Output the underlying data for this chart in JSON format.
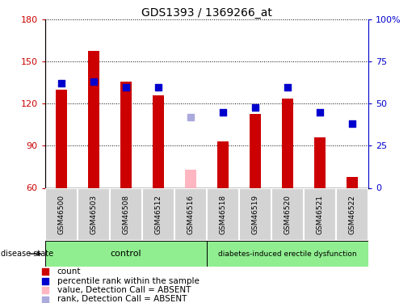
{
  "title": "GDS1393 / 1369266_at",
  "samples": [
    "GSM46500",
    "GSM46503",
    "GSM46508",
    "GSM46512",
    "GSM46516",
    "GSM46518",
    "GSM46519",
    "GSM46520",
    "GSM46521",
    "GSM46522"
  ],
  "count_values": [
    130,
    158,
    136,
    126,
    null,
    93,
    113,
    124,
    96,
    68
  ],
  "count_absent": [
    null,
    null,
    null,
    null,
    73,
    null,
    null,
    null,
    null,
    null
  ],
  "rank_values_pct": [
    62,
    63,
    60,
    60,
    null,
    45,
    48,
    60,
    45,
    38
  ],
  "rank_absent_pct": [
    null,
    null,
    null,
    null,
    42,
    null,
    null,
    null,
    null,
    null
  ],
  "ylim_left": [
    60,
    180
  ],
  "ylim_right": [
    0,
    100
  ],
  "yticks_left": [
    60,
    90,
    120,
    150,
    180
  ],
  "yticks_right": [
    0,
    25,
    50,
    75,
    100
  ],
  "yticklabels_right": [
    "0",
    "25",
    "50",
    "75",
    "100%"
  ],
  "control_samples": [
    "GSM46500",
    "GSM46503",
    "GSM46508",
    "GSM46512",
    "GSM46516"
  ],
  "disease_samples": [
    "GSM46518",
    "GSM46519",
    "GSM46520",
    "GSM46521",
    "GSM46522"
  ],
  "control_label": "control",
  "disease_label": "diabetes-induced erectile dysfunction",
  "group_label": "disease state",
  "bar_color": "#CC0000",
  "absent_bar_color": "#FFB6C1",
  "rank_color": "#0000CC",
  "rank_absent_color": "#AAAADD",
  "tick_color_left": "#CC0000",
  "tick_color_right": "#0000CC",
  "bar_width": 0.35,
  "rank_marker_size": 35,
  "control_bg": "#90EE90",
  "disease_bg": "#90EE90",
  "label_bg": "#D3D3D3"
}
